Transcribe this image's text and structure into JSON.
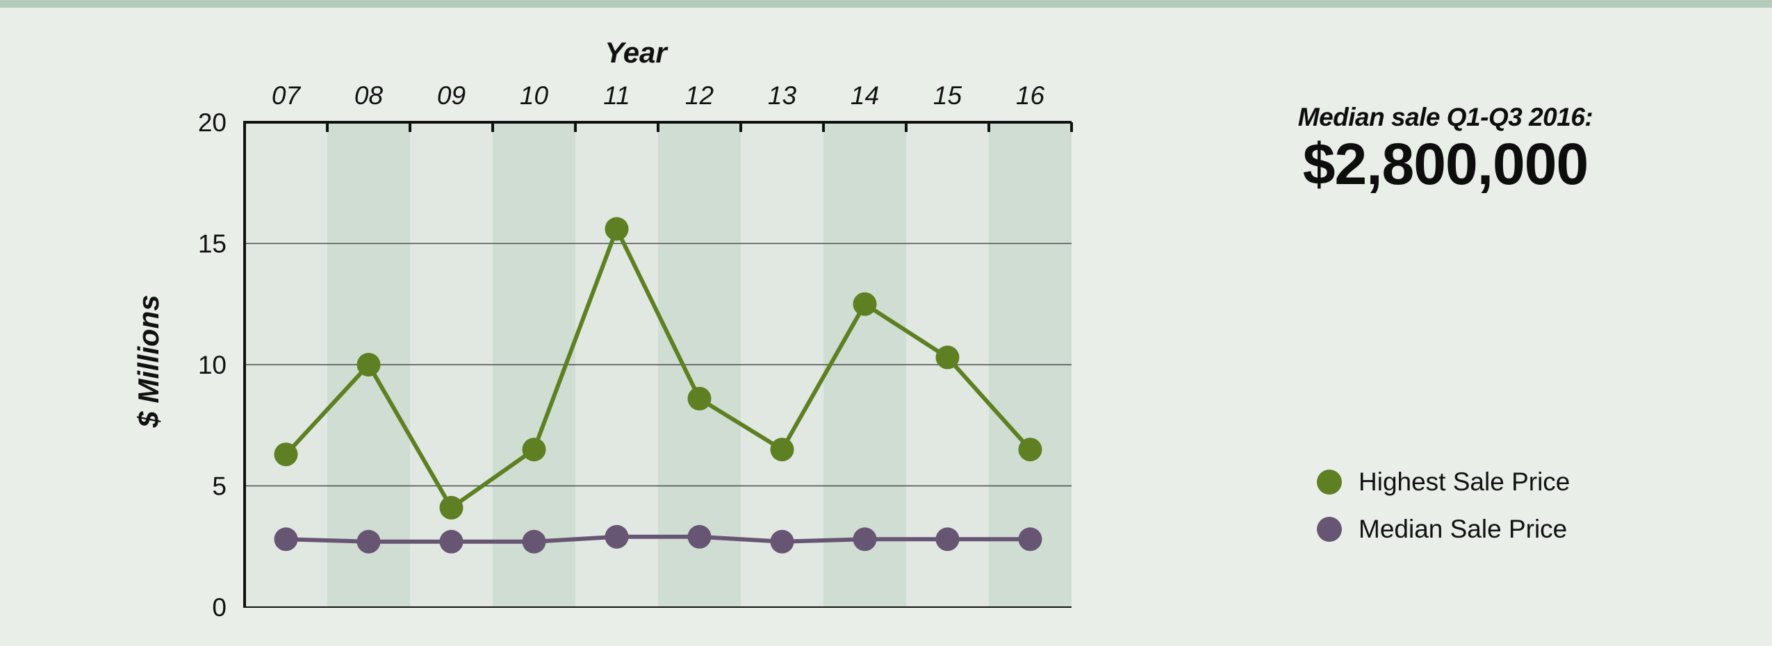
{
  "summary": {
    "label": "Median sale Q1-Q3 2016:",
    "value": "$2,800,000"
  },
  "colors": {
    "background": "#e9eee9",
    "top_bar": "#b4cbb9",
    "band_light": "#e0e8e1",
    "band_dark": "#d0ddd2",
    "highest": "#5e7f22",
    "median": "#675574"
  },
  "chart_data": {
    "type": "line",
    "x_title": "Year",
    "y_title": "$ Millions",
    "x_axis_position": "top",
    "categories": [
      "07",
      "08",
      "09",
      "10",
      "11",
      "12",
      "13",
      "14",
      "15",
      "16"
    ],
    "ylim": [
      0,
      20
    ],
    "yticks": [
      0,
      5,
      10,
      15,
      20
    ],
    "grid": "horizontal",
    "legend_position": "right",
    "series": [
      {
        "name": "Highest Sale Price",
        "color": "#5e7f22",
        "values": [
          6.3,
          10.0,
          4.1,
          6.5,
          15.6,
          8.6,
          6.5,
          12.5,
          10.3,
          6.5
        ]
      },
      {
        "name": "Median Sale Price",
        "color": "#675574",
        "values": [
          2.8,
          2.7,
          2.7,
          2.7,
          2.9,
          2.9,
          2.7,
          2.8,
          2.8,
          2.8
        ]
      }
    ]
  }
}
